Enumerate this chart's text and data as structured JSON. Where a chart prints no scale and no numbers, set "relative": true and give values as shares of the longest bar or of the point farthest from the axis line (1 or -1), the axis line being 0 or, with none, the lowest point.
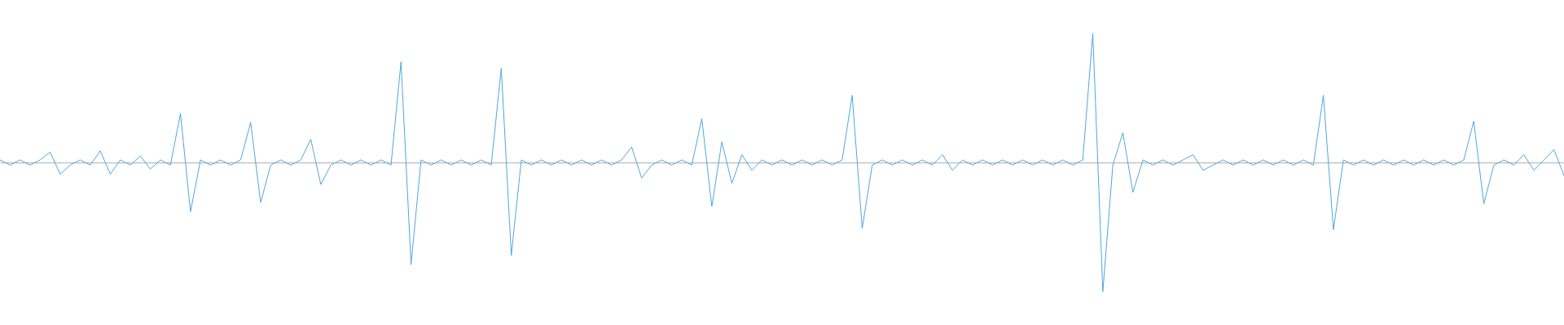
{
  "chart_data": {
    "type": "line",
    "relative": true,
    "categories": [
      null,
      null,
      null,
      null,
      null,
      null,
      null,
      null,
      null,
      null,
      null,
      null,
      null,
      null,
      null,
      null,
      null,
      null,
      null,
      null,
      null,
      null,
      null,
      null,
      null,
      null,
      null,
      null,
      null,
      null,
      null,
      null,
      null,
      null,
      null,
      null,
      null,
      null,
      null,
      null,
      null,
      null,
      null,
      null,
      null,
      null,
      null,
      null,
      null,
      null,
      null,
      null,
      null,
      null,
      null,
      null,
      null,
      null,
      null,
      null,
      null,
      null,
      null,
      null,
      null,
      null,
      null,
      null,
      null,
      null,
      null,
      null,
      null,
      null,
      null,
      null,
      null,
      null,
      null,
      null,
      null,
      null,
      null,
      null,
      null,
      null,
      null,
      null,
      null,
      null,
      null,
      null,
      null,
      null,
      null,
      null,
      null,
      null,
      null,
      null,
      null,
      null,
      null,
      null,
      null,
      null,
      null,
      null,
      null,
      null,
      null,
      null,
      null,
      null,
      null,
      null,
      null,
      null,
      null,
      null,
      null,
      null,
      null,
      null,
      null,
      null,
      null,
      null,
      null,
      null,
      null,
      null,
      null,
      null,
      null,
      null,
      null,
      null,
      null,
      null,
      null,
      null,
      null,
      null,
      null,
      null,
      null,
      null,
      null,
      null,
      null,
      null,
      null,
      null,
      null,
      null,
      null
    ],
    "series": [
      {
        "color": "#4fa6e0",
        "values": [
          0.02,
          -0.02,
          0.02,
          -0.02,
          0.02,
          0.08,
          -0.09,
          -0.02,
          0.02,
          -0.02,
          0.09,
          -0.09,
          0.02,
          -0.02,
          0.05,
          -0.05,
          0.02,
          -0.02,
          0.38,
          -0.38,
          0.02,
          -0.02,
          0.02,
          -0.02,
          0.02,
          0.31,
          -0.31,
          -0.02,
          0.02,
          -0.02,
          0.02,
          0.18,
          -0.17,
          -0.02,
          0.02,
          -0.02,
          0.02,
          -0.02,
          0.02,
          -0.02,
          0.78,
          -0.79,
          0.02,
          -0.02,
          0.02,
          -0.02,
          0.02,
          -0.02,
          0.02,
          -0.02,
          0.73,
          -0.72,
          0.02,
          -0.02,
          0.02,
          -0.02,
          0.02,
          -0.02,
          0.02,
          -0.02,
          0.02,
          -0.02,
          0.02,
          0.12,
          -0.12,
          -0.02,
          0.02,
          -0.02,
          0.02,
          -0.02,
          0.34,
          -0.34,
          0.16,
          -0.16,
          0.06,
          -0.06,
          0.02,
          -0.02,
          0.02,
          -0.02,
          0.02,
          -0.02,
          0.02,
          -0.02,
          0.02,
          0.52,
          -0.51,
          -0.02,
          0.02,
          -0.02,
          0.02,
          -0.02,
          0.02,
          -0.02,
          0.06,
          -0.06,
          0.02,
          -0.02,
          0.02,
          -0.02,
          0.02,
          -0.02,
          0.02,
          -0.02,
          0.02,
          -0.02,
          0.02,
          -0.02,
          0.02,
          1,
          -1,
          -0.02,
          0.23,
          -0.23,
          0.02,
          -0.02,
          0.02,
          -0.02,
          0.02,
          0.06,
          -0.06,
          -0.02,
          0.02,
          -0.02,
          0.02,
          -0.02,
          0.02,
          -0.02,
          0.02,
          -0.02,
          0.02,
          -0.02,
          0.52,
          -0.52,
          0.02,
          -0.02,
          0.02,
          -0.02,
          0.02,
          -0.02,
          0.02,
          -0.02,
          0.02,
          -0.02,
          0.02,
          -0.02,
          0.02,
          0.32,
          -0.32,
          -0.02,
          0.02,
          -0.02,
          0.06,
          -0.06,
          0.02,
          0.1,
          -0.1
        ]
      }
    ]
  }
}
